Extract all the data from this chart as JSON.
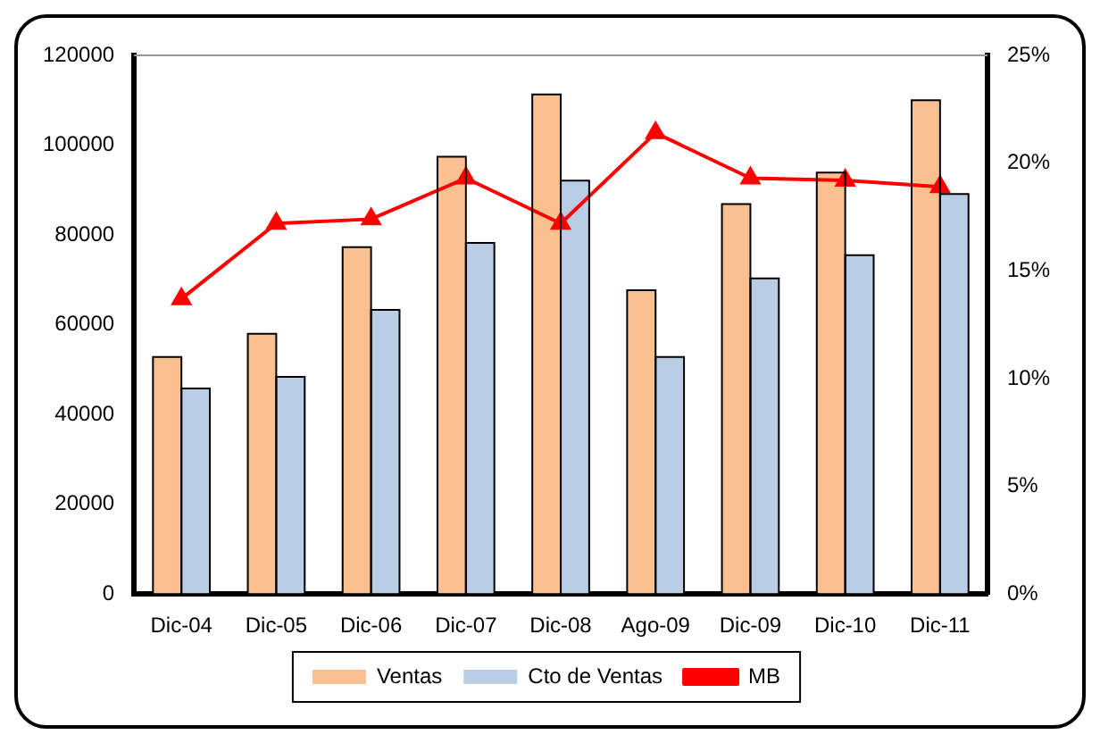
{
  "chart_data": {
    "type": "bar",
    "categories": [
      "Dic-04",
      "Dic-05",
      "Dic-06",
      "Dic-07",
      "Dic-08",
      "Ago-09",
      "Dic-09",
      "Dic-10",
      "Dic-11"
    ],
    "series": [
      {
        "name": "Ventas",
        "color": "#fac090",
        "values": [
          52800,
          58000,
          77300,
          97400,
          111300,
          67700,
          86900,
          93900,
          110000
        ]
      },
      {
        "name": "Cto de Ventas",
        "color": "#b9cde5",
        "values": [
          45800,
          48400,
          63300,
          78200,
          92100,
          52800,
          70300,
          75500,
          89100
        ]
      },
      {
        "name": "MB",
        "type": "line",
        "axis": "y2",
        "color": "#ff0000",
        "marker": "triangle",
        "values": [
          13.7,
          17.2,
          17.4,
          19.3,
          17.2,
          21.4,
          19.3,
          19.2,
          18.9
        ]
      }
    ],
    "ylim": [
      0,
      120000
    ],
    "yticks": [
      0,
      20000,
      40000,
      60000,
      80000,
      100000,
      120000
    ],
    "y2lim": [
      0,
      25
    ],
    "y2ticks": [
      {
        "value": 0,
        "label": "0%"
      },
      {
        "value": 5,
        "label": "5%"
      },
      {
        "value": 10,
        "label": "10%"
      },
      {
        "value": 15,
        "label": "15%"
      },
      {
        "value": 20,
        "label": "20%"
      },
      {
        "value": 25,
        "label": "25%"
      }
    ],
    "grid": false,
    "legend": "bottom"
  }
}
